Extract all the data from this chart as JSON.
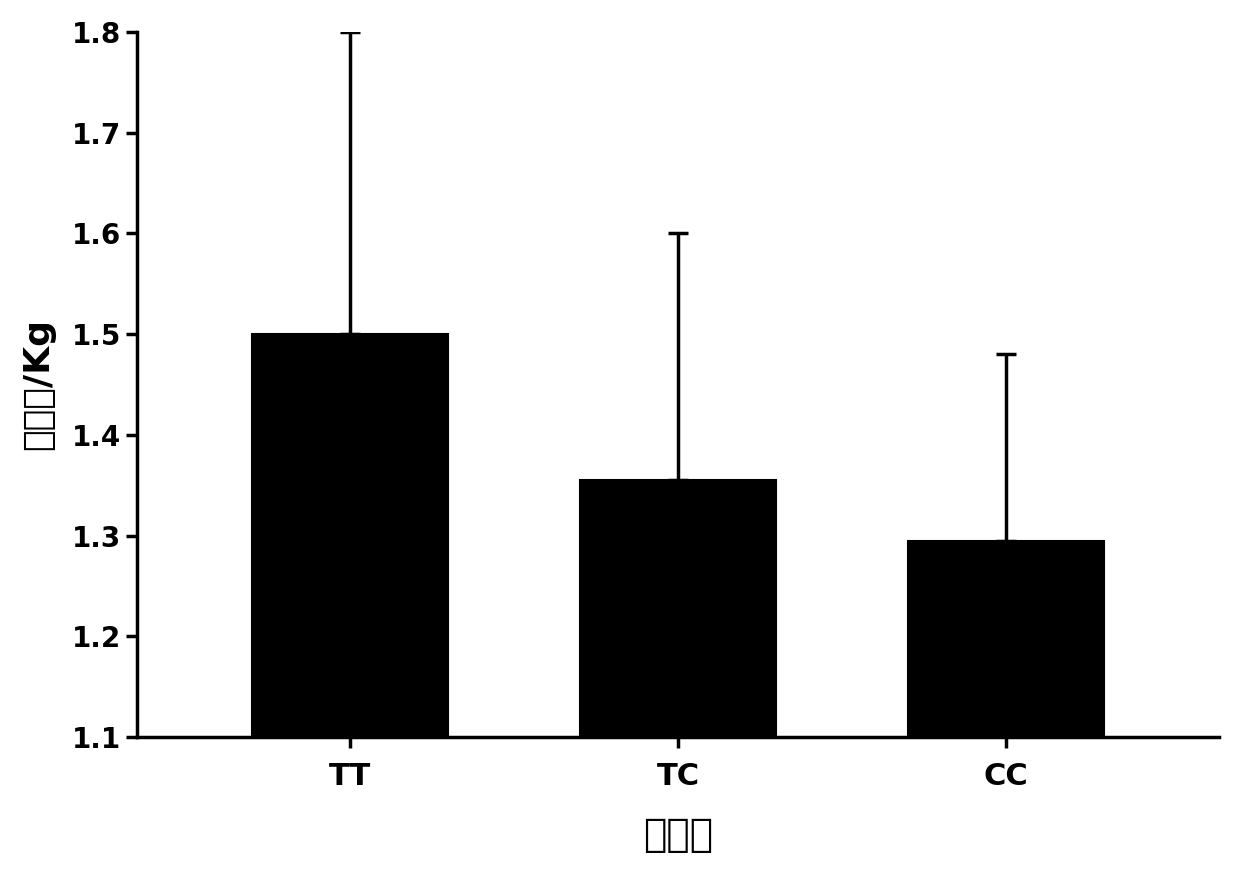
{
  "categories": [
    "TT",
    "TC",
    "CC"
  ],
  "values": [
    1.5,
    1.355,
    1.295
  ],
  "error_upper": [
    0.3,
    0.245,
    0.185
  ],
  "bar_color": "#000000",
  "bar_edge_color": "#000000",
  "background_color": "#ffffff",
  "ylabel": "初生重/Kg",
  "xlabel": "基因型",
  "ylim": [
    1.1,
    1.8
  ],
  "yticks": [
    1.1,
    1.2,
    1.3,
    1.4,
    1.5,
    1.6,
    1.7,
    1.8
  ],
  "ylabel_fontsize": 26,
  "xlabel_fontsize": 28,
  "tick_fontsize": 20,
  "xtick_fontsize": 22,
  "bar_width": 0.6,
  "capsize": 7
}
